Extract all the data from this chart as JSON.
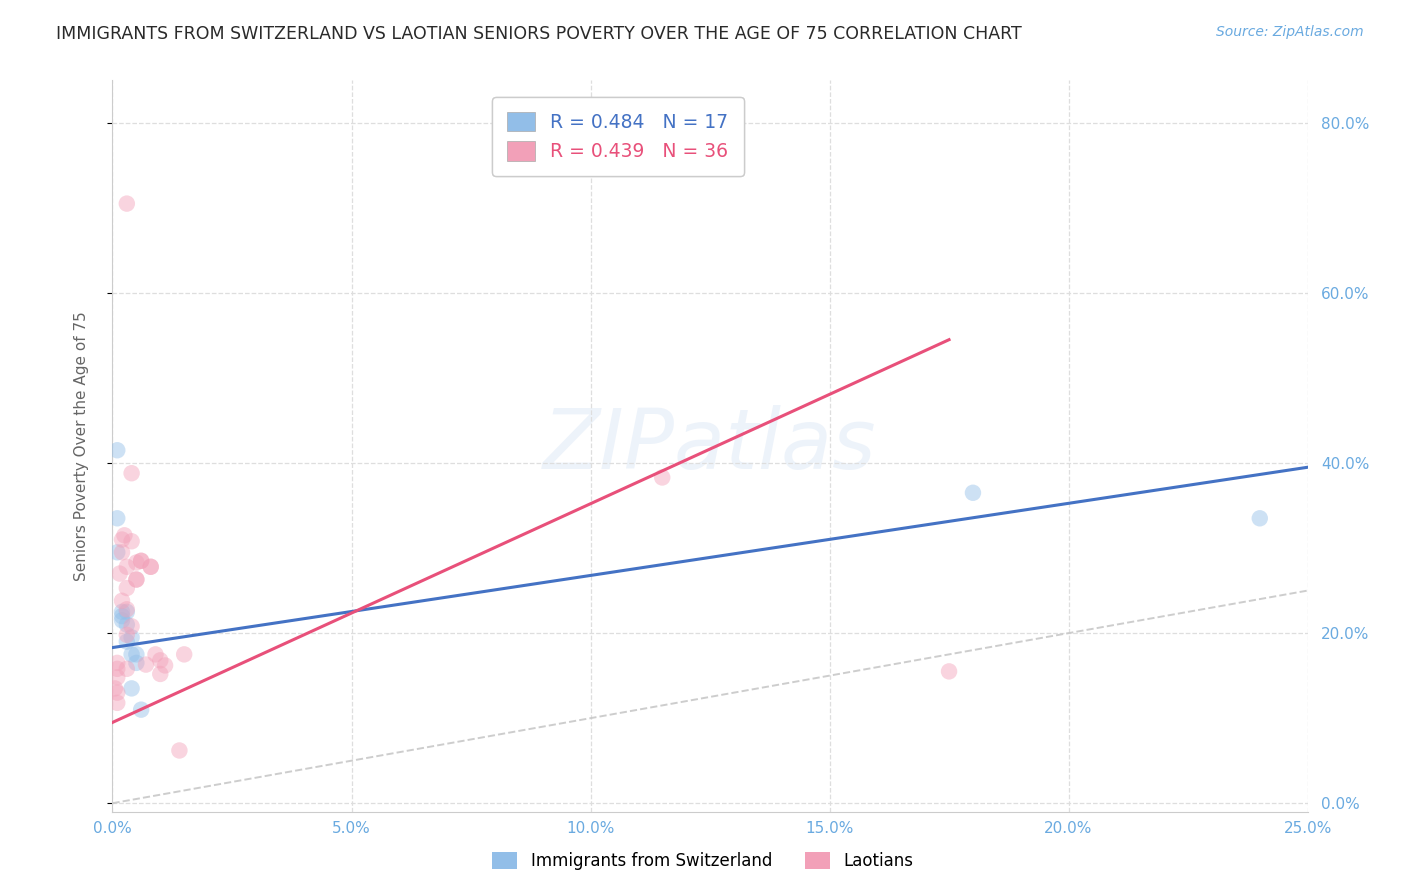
{
  "title": "IMMIGRANTS FROM SWITZERLAND VS LAOTIAN SENIORS POVERTY OVER THE AGE OF 75 CORRELATION CHART",
  "source": "Source: ZipAtlas.com",
  "ylabel": "Seniors Poverty Over the Age of 75",
  "xlim": [
    0,
    0.25
  ],
  "ylim": [
    -0.01,
    0.85
  ],
  "swiss_scatter": [
    [
      0.001,
      0.415
    ],
    [
      0.001,
      0.335
    ],
    [
      0.001,
      0.295
    ],
    [
      0.002,
      0.225
    ],
    [
      0.002,
      0.215
    ],
    [
      0.002,
      0.22
    ],
    [
      0.003,
      0.225
    ],
    [
      0.003,
      0.21
    ],
    [
      0.003,
      0.19
    ],
    [
      0.004,
      0.175
    ],
    [
      0.004,
      0.195
    ],
    [
      0.004,
      0.135
    ],
    [
      0.005,
      0.165
    ],
    [
      0.005,
      0.175
    ],
    [
      0.006,
      0.11
    ],
    [
      0.18,
      0.365
    ],
    [
      0.24,
      0.335
    ]
  ],
  "laotian_scatter": [
    [
      0.0005,
      0.135
    ],
    [
      0.001,
      0.148
    ],
    [
      0.001,
      0.13
    ],
    [
      0.001,
      0.158
    ],
    [
      0.001,
      0.118
    ],
    [
      0.001,
      0.165
    ],
    [
      0.0015,
      0.27
    ],
    [
      0.002,
      0.295
    ],
    [
      0.002,
      0.31
    ],
    [
      0.0025,
      0.315
    ],
    [
      0.002,
      0.238
    ],
    [
      0.003,
      0.278
    ],
    [
      0.003,
      0.253
    ],
    [
      0.003,
      0.228
    ],
    [
      0.003,
      0.198
    ],
    [
      0.003,
      0.158
    ],
    [
      0.003,
      0.705
    ],
    [
      0.004,
      0.308
    ],
    [
      0.004,
      0.388
    ],
    [
      0.004,
      0.208
    ],
    [
      0.005,
      0.263
    ],
    [
      0.005,
      0.283
    ],
    [
      0.005,
      0.263
    ],
    [
      0.006,
      0.285
    ],
    [
      0.006,
      0.285
    ],
    [
      0.007,
      0.163
    ],
    [
      0.008,
      0.278
    ],
    [
      0.008,
      0.278
    ],
    [
      0.009,
      0.175
    ],
    [
      0.01,
      0.168
    ],
    [
      0.01,
      0.152
    ],
    [
      0.011,
      0.162
    ],
    [
      0.014,
      0.062
    ],
    [
      0.015,
      0.175
    ],
    [
      0.115,
      0.383
    ],
    [
      0.175,
      0.155
    ]
  ],
  "swiss_line_x": [
    0.0,
    0.25
  ],
  "swiss_line_y": [
    0.183,
    0.395
  ],
  "laotian_line_x": [
    0.0,
    0.175
  ],
  "laotian_line_y": [
    0.095,
    0.545
  ],
  "swiss_scatter_color": "#92BEE8",
  "laotian_scatter_color": "#F2A0B8",
  "swiss_line_color": "#4472C4",
  "laotian_line_color": "#E8507A",
  "diagonal_color": "#C8C8C8",
  "background_color": "#FFFFFF",
  "grid_color": "#DEDEDE",
  "title_color": "#2a2a2a",
  "axis_color": "#6aaae0",
  "title_fontsize": 12.5,
  "source_fontsize": 10,
  "axis_label_fontsize": 11,
  "tick_fontsize": 11,
  "scatter_size": 140,
  "scatter_alpha": 0.45,
  "yticks": [
    0.0,
    0.2,
    0.4,
    0.6,
    0.8
  ],
  "xticks": [
    0.0,
    0.05,
    0.1,
    0.15,
    0.2,
    0.25
  ]
}
